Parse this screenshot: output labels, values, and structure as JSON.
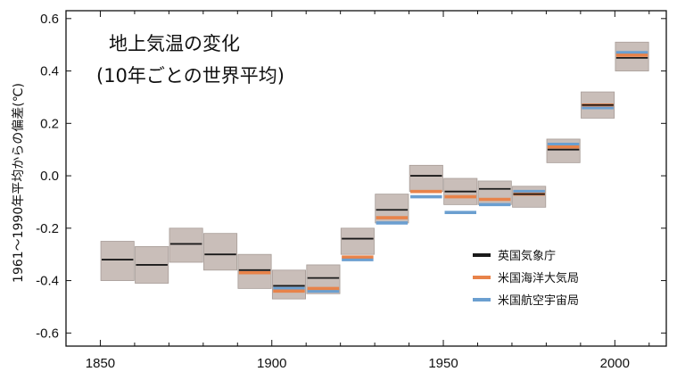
{
  "chart_data": {
    "type": "line",
    "title": "地上気温の変化",
    "subtitle": "(10年ごとの世界平均)",
    "xlabel": "",
    "ylabel": "1961～1990年平均からの偏差(℃)",
    "xlim": [
      1840,
      2015
    ],
    "ylim": [
      -0.65,
      0.63
    ],
    "xticks": [
      "1850",
      "1900",
      "1950",
      "2000"
    ],
    "yticks": [
      "0.6",
      "0.4",
      "0.2",
      "0.0",
      "-0.2",
      "-0.4",
      "-0.6"
    ],
    "grid": false,
    "legend_position": "bottom-right",
    "colors": {
      "uncertainty_band": "#c9beb9",
      "uncertainty_edge": "#a79c97"
    },
    "decades": [
      1850,
      1860,
      1870,
      1880,
      1890,
      1900,
      1910,
      1920,
      1930,
      1940,
      1950,
      1960,
      1970,
      1980,
      1990,
      2000
    ],
    "uncertainty": {
      "low": [
        -0.4,
        -0.41,
        -0.33,
        -0.36,
        -0.43,
        -0.47,
        -0.45,
        -0.3,
        -0.18,
        -0.06,
        -0.11,
        -0.11,
        -0.12,
        0.05,
        0.22,
        0.4
      ],
      "high": [
        -0.25,
        -0.27,
        -0.2,
        -0.22,
        -0.3,
        -0.36,
        -0.34,
        -0.2,
        -0.07,
        0.04,
        -0.01,
        -0.02,
        -0.04,
        0.14,
        0.32,
        0.51
      ]
    },
    "series": [
      {
        "name": "英国気象庁",
        "color": "#1a1a1a",
        "values": [
          -0.32,
          -0.34,
          -0.26,
          -0.3,
          -0.36,
          -0.42,
          -0.39,
          -0.24,
          -0.13,
          0.0,
          -0.06,
          -0.05,
          -0.07,
          0.1,
          0.27,
          0.45
        ]
      },
      {
        "name": "米国海洋大気局",
        "color": "#e8834a",
        "values": [
          null,
          null,
          null,
          null,
          -0.37,
          -0.44,
          -0.43,
          -0.31,
          -0.16,
          -0.06,
          -0.08,
          -0.09,
          -0.07,
          0.11,
          0.27,
          0.46
        ]
      },
      {
        "name": "米国航空宇宙局",
        "color": "#6b9fd0",
        "values": [
          null,
          null,
          null,
          null,
          null,
          -0.43,
          -0.44,
          -0.32,
          -0.18,
          -0.08,
          -0.14,
          -0.11,
          -0.06,
          0.12,
          0.26,
          0.47
        ]
      }
    ]
  }
}
